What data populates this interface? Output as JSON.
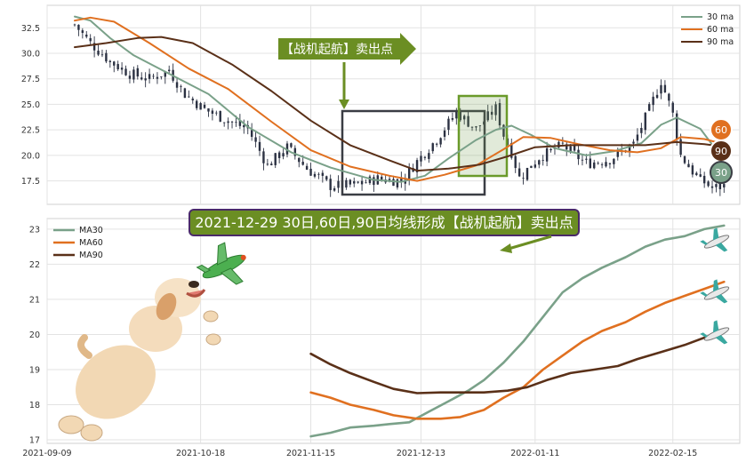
{
  "chart_data": [
    {
      "type": "candlestick",
      "x_range": [
        "2021-09-09",
        "2022-03-04"
      ],
      "ylim": [
        15.2,
        34.7
      ],
      "y_ticks": [
        "17.5",
        "20.0",
        "22.5",
        "25.0",
        "27.5",
        "30.0",
        "32.5"
      ],
      "grid": true,
      "legend_placement": "top-right",
      "legend": [
        "30 ma",
        "60 ma",
        "90 ma"
      ],
      "colors": {
        "candle": "#2b3142",
        "ma30": "#7aa189",
        "ma60": "#e07020",
        "ma90": "#5a3018"
      },
      "price_path": [
        {
          "date": "2021-09-16",
          "close": 32.8
        },
        {
          "date": "2021-09-20",
          "close": 31.0
        },
        {
          "date": "2021-09-25",
          "close": 29.2
        },
        {
          "date": "2021-09-30",
          "close": 28.0
        },
        {
          "date": "2021-10-05",
          "close": 27.5
        },
        {
          "date": "2021-10-10",
          "close": 28.3
        },
        {
          "date": "2021-10-14",
          "close": 26.0
        },
        {
          "date": "2021-10-19",
          "close": 24.5
        },
        {
          "date": "2021-10-25",
          "close": 23.4
        },
        {
          "date": "2021-10-30",
          "close": 22.6
        },
        {
          "date": "2021-11-04",
          "close": 19.0
        },
        {
          "date": "2021-11-09",
          "close": 20.8
        },
        {
          "date": "2021-11-14",
          "close": 18.7
        },
        {
          "date": "2021-11-20",
          "close": 17.0
        },
        {
          "date": "2021-11-26",
          "close": 17.1
        },
        {
          "date": "2021-12-02",
          "close": 17.7
        },
        {
          "date": "2021-12-08",
          "close": 17.5
        },
        {
          "date": "2021-12-12",
          "close": 19.4
        },
        {
          "date": "2021-12-17",
          "close": 21.6
        },
        {
          "date": "2021-12-22",
          "close": 24.2
        },
        {
          "date": "2021-12-27",
          "close": 22.6
        },
        {
          "date": "2022-01-01",
          "close": 24.6
        },
        {
          "date": "2022-01-03",
          "close": 22.0
        },
        {
          "date": "2022-01-05",
          "close": 20.3
        },
        {
          "date": "2022-01-07",
          "close": 17.8
        },
        {
          "date": "2022-01-12",
          "close": 19.8
        },
        {
          "date": "2022-01-18",
          "close": 21.0
        },
        {
          "date": "2022-01-24",
          "close": 19.2
        },
        {
          "date": "2022-01-30",
          "close": 19.6
        },
        {
          "date": "2022-02-05",
          "close": 21.1
        },
        {
          "date": "2022-02-09",
          "close": 24.5
        },
        {
          "date": "2022-02-12",
          "close": 27.3
        },
        {
          "date": "2022-02-15",
          "close": 24.0
        },
        {
          "date": "2022-02-17",
          "close": 20.0
        },
        {
          "date": "2022-02-21",
          "close": 17.9
        },
        {
          "date": "2022-02-25",
          "close": 16.8
        },
        {
          "date": "2022-02-28",
          "close": 17.0
        }
      ],
      "series": [
        {
          "name": "30 ma",
          "points": [
            {
              "date": "2021-09-16",
              "y": 33.6
            },
            {
              "date": "2021-09-20",
              "y": 33.2
            },
            {
              "date": "2021-09-25",
              "y": 31.5
            },
            {
              "date": "2021-10-01",
              "y": 29.8
            },
            {
              "date": "2021-10-10",
              "y": 28.0
            },
            {
              "date": "2021-10-20",
              "y": 26.0
            },
            {
              "date": "2021-10-30",
              "y": 22.8
            },
            {
              "date": "2021-11-10",
              "y": 20.3
            },
            {
              "date": "2021-11-20",
              "y": 18.8
            },
            {
              "date": "2021-12-01",
              "y": 17.6
            },
            {
              "date": "2021-12-08",
              "y": 17.4
            },
            {
              "date": "2021-12-14",
              "y": 18.0
            },
            {
              "date": "2021-12-20",
              "y": 19.7
            },
            {
              "date": "2021-12-27",
              "y": 21.5
            },
            {
              "date": "2022-01-01",
              "y": 22.5
            },
            {
              "date": "2022-01-05",
              "y": 22.9
            },
            {
              "date": "2022-01-10",
              "y": 22.0
            },
            {
              "date": "2022-01-16",
              "y": 20.7
            },
            {
              "date": "2022-01-24",
              "y": 20.0
            },
            {
              "date": "2022-01-31",
              "y": 20.4
            },
            {
              "date": "2022-02-07",
              "y": 21.2
            },
            {
              "date": "2022-02-12",
              "y": 23.0
            },
            {
              "date": "2022-02-16",
              "y": 23.7
            },
            {
              "date": "2022-02-22",
              "y": 22.6
            },
            {
              "date": "2022-02-28",
              "y": 19.5
            }
          ]
        },
        {
          "name": "60 ma",
          "points": [
            {
              "date": "2021-09-16",
              "y": 33.2
            },
            {
              "date": "2021-09-20",
              "y": 33.5
            },
            {
              "date": "2021-09-26",
              "y": 33.1
            },
            {
              "date": "2021-10-05",
              "y": 31.0
            },
            {
              "date": "2021-10-15",
              "y": 28.5
            },
            {
              "date": "2021-10-25",
              "y": 26.5
            },
            {
              "date": "2021-11-05",
              "y": 23.3
            },
            {
              "date": "2021-11-15",
              "y": 20.5
            },
            {
              "date": "2021-11-25",
              "y": 18.9
            },
            {
              "date": "2021-12-05",
              "y": 18.0
            },
            {
              "date": "2021-12-12",
              "y": 17.5
            },
            {
              "date": "2021-12-19",
              "y": 18.1
            },
            {
              "date": "2021-12-27",
              "y": 19.0
            },
            {
              "date": "2022-01-03",
              "y": 20.6
            },
            {
              "date": "2022-01-08",
              "y": 21.8
            },
            {
              "date": "2022-01-15",
              "y": 21.7
            },
            {
              "date": "2022-01-22",
              "y": 21.1
            },
            {
              "date": "2022-01-30",
              "y": 20.5
            },
            {
              "date": "2022-02-06",
              "y": 20.3
            },
            {
              "date": "2022-02-12",
              "y": 20.7
            },
            {
              "date": "2022-02-17",
              "y": 21.8
            },
            {
              "date": "2022-02-23",
              "y": 21.6
            },
            {
              "date": "2022-03-01",
              "y": 21.0
            }
          ]
        },
        {
          "name": "90 ma",
          "points": [
            {
              "date": "2021-09-16",
              "y": 30.6
            },
            {
              "date": "2021-09-24",
              "y": 31.0
            },
            {
              "date": "2021-10-02",
              "y": 31.5
            },
            {
              "date": "2021-10-08",
              "y": 31.6
            },
            {
              "date": "2021-10-16",
              "y": 31.0
            },
            {
              "date": "2021-10-26",
              "y": 28.9
            },
            {
              "date": "2021-11-05",
              "y": 26.3
            },
            {
              "date": "2021-11-15",
              "y": 23.4
            },
            {
              "date": "2021-11-25",
              "y": 21.0
            },
            {
              "date": "2021-12-05",
              "y": 19.5
            },
            {
              "date": "2021-12-12",
              "y": 18.5
            },
            {
              "date": "2021-12-20",
              "y": 18.7
            },
            {
              "date": "2021-12-28",
              "y": 19.1
            },
            {
              "date": "2022-01-04",
              "y": 19.9
            },
            {
              "date": "2022-01-11",
              "y": 20.8
            },
            {
              "date": "2022-01-20",
              "y": 21.0
            },
            {
              "date": "2022-01-30",
              "y": 21.0
            },
            {
              "date": "2022-02-08",
              "y": 21.0
            },
            {
              "date": "2022-02-16",
              "y": 21.3
            },
            {
              "date": "2022-02-23",
              "y": 21.1
            },
            {
              "date": "2022-03-01",
              "y": 20.8
            }
          ]
        }
      ],
      "annotations": {
        "arrow_label": "【战机起航】卖出点",
        "badges": [
          "60",
          "90",
          "30"
        ]
      }
    },
    {
      "type": "line",
      "x_range": [
        "2021-09-09",
        "2022-03-04"
      ],
      "x_ticks": [
        "2021-09-09",
        "2021-10-18",
        "2021-11-15",
        "2021-12-13",
        "2022-01-11",
        "2022-02-15"
      ],
      "ylim": [
        16.9,
        23.3
      ],
      "y_ticks": [
        "17",
        "18",
        "19",
        "20",
        "21",
        "22",
        "23"
      ],
      "grid": true,
      "legend_placement": "top-left",
      "legend": [
        "MA30",
        "MA60",
        "MA90"
      ],
      "colors": {
        "MA30": "#7aa189",
        "MA60": "#e07020",
        "MA90": "#5a3018"
      },
      "series": [
        {
          "name": "MA30",
          "points": [
            {
              "date": "2021-11-15",
              "y": 17.1
            },
            {
              "date": "2021-11-20",
              "y": 17.2
            },
            {
              "date": "2021-11-25",
              "y": 17.35
            },
            {
              "date": "2021-12-01",
              "y": 17.4
            },
            {
              "date": "2021-12-05",
              "y": 17.45
            },
            {
              "date": "2021-12-10",
              "y": 17.5
            },
            {
              "date": "2021-12-15",
              "y": 17.8
            },
            {
              "date": "2021-12-20",
              "y": 18.1
            },
            {
              "date": "2021-12-25",
              "y": 18.4
            },
            {
              "date": "2021-12-29",
              "y": 18.7
            },
            {
              "date": "2022-01-03",
              "y": 19.2
            },
            {
              "date": "2022-01-08",
              "y": 19.8
            },
            {
              "date": "2022-01-13",
              "y": 20.5
            },
            {
              "date": "2022-01-18",
              "y": 21.2
            },
            {
              "date": "2022-01-23",
              "y": 21.6
            },
            {
              "date": "2022-01-28",
              "y": 21.9
            },
            {
              "date": "2022-02-03",
              "y": 22.2
            },
            {
              "date": "2022-02-08",
              "y": 22.5
            },
            {
              "date": "2022-02-13",
              "y": 22.7
            },
            {
              "date": "2022-02-18",
              "y": 22.8
            },
            {
              "date": "2022-02-23",
              "y": 23.0
            },
            {
              "date": "2022-02-28",
              "y": 23.1
            }
          ]
        },
        {
          "name": "MA60",
          "points": [
            {
              "date": "2021-11-15",
              "y": 18.35
            },
            {
              "date": "2021-11-20",
              "y": 18.2
            },
            {
              "date": "2021-11-25",
              "y": 18.0
            },
            {
              "date": "2021-12-01",
              "y": 17.85
            },
            {
              "date": "2021-12-06",
              "y": 17.7
            },
            {
              "date": "2021-12-12",
              "y": 17.6
            },
            {
              "date": "2021-12-18",
              "y": 17.6
            },
            {
              "date": "2021-12-23",
              "y": 17.65
            },
            {
              "date": "2021-12-29",
              "y": 17.85
            },
            {
              "date": "2022-01-03",
              "y": 18.2
            },
            {
              "date": "2022-01-08",
              "y": 18.5
            },
            {
              "date": "2022-01-13",
              "y": 19.0
            },
            {
              "date": "2022-01-18",
              "y": 19.4
            },
            {
              "date": "2022-01-23",
              "y": 19.8
            },
            {
              "date": "2022-01-28",
              "y": 20.1
            },
            {
              "date": "2022-02-03",
              "y": 20.35
            },
            {
              "date": "2022-02-08",
              "y": 20.65
            },
            {
              "date": "2022-02-13",
              "y": 20.9
            },
            {
              "date": "2022-02-18",
              "y": 21.1
            },
            {
              "date": "2022-02-23",
              "y": 21.3
            },
            {
              "date": "2022-02-28",
              "y": 21.5
            }
          ]
        },
        {
          "name": "MA90",
          "points": [
            {
              "date": "2021-11-15",
              "y": 19.45
            },
            {
              "date": "2021-11-20",
              "y": 19.15
            },
            {
              "date": "2021-11-25",
              "y": 18.9
            },
            {
              "date": "2021-12-01",
              "y": 18.65
            },
            {
              "date": "2021-12-06",
              "y": 18.45
            },
            {
              "date": "2021-12-12",
              "y": 18.33
            },
            {
              "date": "2021-12-18",
              "y": 18.35
            },
            {
              "date": "2021-12-24",
              "y": 18.35
            },
            {
              "date": "2021-12-29",
              "y": 18.35
            },
            {
              "date": "2022-01-04",
              "y": 18.4
            },
            {
              "date": "2022-01-09",
              "y": 18.5
            },
            {
              "date": "2022-01-14",
              "y": 18.7
            },
            {
              "date": "2022-01-20",
              "y": 18.9
            },
            {
              "date": "2022-01-26",
              "y": 19.0
            },
            {
              "date": "2022-02-01",
              "y": 19.1
            },
            {
              "date": "2022-02-06",
              "y": 19.3
            },
            {
              "date": "2022-02-12",
              "y": 19.5
            },
            {
              "date": "2022-02-18",
              "y": 19.7
            },
            {
              "date": "2022-02-24",
              "y": 19.95
            },
            {
              "date": "2022-02-28",
              "y": 20.1
            }
          ]
        }
      ],
      "banner": "2021-12-29 30日,60日,90日均线形成【战机起航】卖出点"
    }
  ]
}
